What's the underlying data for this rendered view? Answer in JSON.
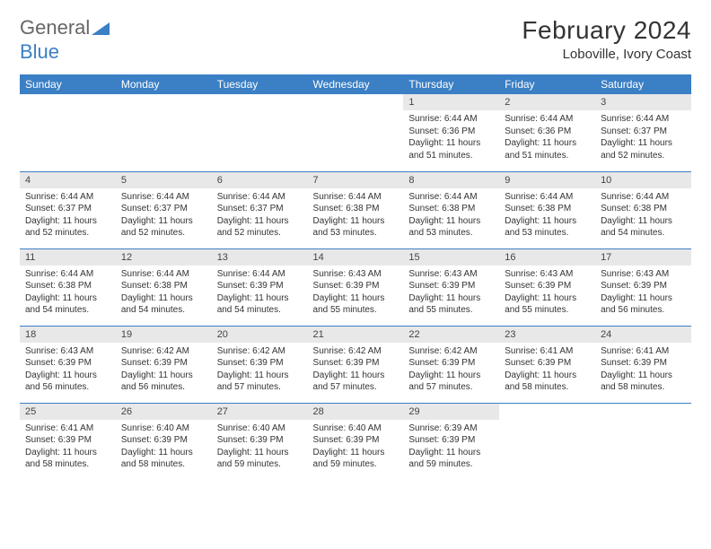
{
  "logo": {
    "text1": "General",
    "text2": "Blue"
  },
  "title": "February 2024",
  "location": "Loboville, Ivory Coast",
  "colors": {
    "header_bg": "#3b7fc4",
    "header_fg": "#ffffff",
    "daynum_bg": "#e8e8e8",
    "cell_border": "#3b7fc4",
    "page_bg": "#ffffff",
    "text": "#333333"
  },
  "calendar": {
    "columns": [
      "Sunday",
      "Monday",
      "Tuesday",
      "Wednesday",
      "Thursday",
      "Friday",
      "Saturday"
    ],
    "weeks": [
      [
        {
          "day": "",
          "sunrise": "",
          "sunset": "",
          "daylight": ""
        },
        {
          "day": "",
          "sunrise": "",
          "sunset": "",
          "daylight": ""
        },
        {
          "day": "",
          "sunrise": "",
          "sunset": "",
          "daylight": ""
        },
        {
          "day": "",
          "sunrise": "",
          "sunset": "",
          "daylight": ""
        },
        {
          "day": "1",
          "sunrise": "6:44 AM",
          "sunset": "6:36 PM",
          "daylight": "11 hours and 51 minutes."
        },
        {
          "day": "2",
          "sunrise": "6:44 AM",
          "sunset": "6:36 PM",
          "daylight": "11 hours and 51 minutes."
        },
        {
          "day": "3",
          "sunrise": "6:44 AM",
          "sunset": "6:37 PM",
          "daylight": "11 hours and 52 minutes."
        }
      ],
      [
        {
          "day": "4",
          "sunrise": "6:44 AM",
          "sunset": "6:37 PM",
          "daylight": "11 hours and 52 minutes."
        },
        {
          "day": "5",
          "sunrise": "6:44 AM",
          "sunset": "6:37 PM",
          "daylight": "11 hours and 52 minutes."
        },
        {
          "day": "6",
          "sunrise": "6:44 AM",
          "sunset": "6:37 PM",
          "daylight": "11 hours and 52 minutes."
        },
        {
          "day": "7",
          "sunrise": "6:44 AM",
          "sunset": "6:38 PM",
          "daylight": "11 hours and 53 minutes."
        },
        {
          "day": "8",
          "sunrise": "6:44 AM",
          "sunset": "6:38 PM",
          "daylight": "11 hours and 53 minutes."
        },
        {
          "day": "9",
          "sunrise": "6:44 AM",
          "sunset": "6:38 PM",
          "daylight": "11 hours and 53 minutes."
        },
        {
          "day": "10",
          "sunrise": "6:44 AM",
          "sunset": "6:38 PM",
          "daylight": "11 hours and 54 minutes."
        }
      ],
      [
        {
          "day": "11",
          "sunrise": "6:44 AM",
          "sunset": "6:38 PM",
          "daylight": "11 hours and 54 minutes."
        },
        {
          "day": "12",
          "sunrise": "6:44 AM",
          "sunset": "6:38 PM",
          "daylight": "11 hours and 54 minutes."
        },
        {
          "day": "13",
          "sunrise": "6:44 AM",
          "sunset": "6:39 PM",
          "daylight": "11 hours and 54 minutes."
        },
        {
          "day": "14",
          "sunrise": "6:43 AM",
          "sunset": "6:39 PM",
          "daylight": "11 hours and 55 minutes."
        },
        {
          "day": "15",
          "sunrise": "6:43 AM",
          "sunset": "6:39 PM",
          "daylight": "11 hours and 55 minutes."
        },
        {
          "day": "16",
          "sunrise": "6:43 AM",
          "sunset": "6:39 PM",
          "daylight": "11 hours and 55 minutes."
        },
        {
          "day": "17",
          "sunrise": "6:43 AM",
          "sunset": "6:39 PM",
          "daylight": "11 hours and 56 minutes."
        }
      ],
      [
        {
          "day": "18",
          "sunrise": "6:43 AM",
          "sunset": "6:39 PM",
          "daylight": "11 hours and 56 minutes."
        },
        {
          "day": "19",
          "sunrise": "6:42 AM",
          "sunset": "6:39 PM",
          "daylight": "11 hours and 56 minutes."
        },
        {
          "day": "20",
          "sunrise": "6:42 AM",
          "sunset": "6:39 PM",
          "daylight": "11 hours and 57 minutes."
        },
        {
          "day": "21",
          "sunrise": "6:42 AM",
          "sunset": "6:39 PM",
          "daylight": "11 hours and 57 minutes."
        },
        {
          "day": "22",
          "sunrise": "6:42 AM",
          "sunset": "6:39 PM",
          "daylight": "11 hours and 57 minutes."
        },
        {
          "day": "23",
          "sunrise": "6:41 AM",
          "sunset": "6:39 PM",
          "daylight": "11 hours and 58 minutes."
        },
        {
          "day": "24",
          "sunrise": "6:41 AM",
          "sunset": "6:39 PM",
          "daylight": "11 hours and 58 minutes."
        }
      ],
      [
        {
          "day": "25",
          "sunrise": "6:41 AM",
          "sunset": "6:39 PM",
          "daylight": "11 hours and 58 minutes."
        },
        {
          "day": "26",
          "sunrise": "6:40 AM",
          "sunset": "6:39 PM",
          "daylight": "11 hours and 58 minutes."
        },
        {
          "day": "27",
          "sunrise": "6:40 AM",
          "sunset": "6:39 PM",
          "daylight": "11 hours and 59 minutes."
        },
        {
          "day": "28",
          "sunrise": "6:40 AM",
          "sunset": "6:39 PM",
          "daylight": "11 hours and 59 minutes."
        },
        {
          "day": "29",
          "sunrise": "6:39 AM",
          "sunset": "6:39 PM",
          "daylight": "11 hours and 59 minutes."
        },
        {
          "day": "",
          "sunrise": "",
          "sunset": "",
          "daylight": ""
        },
        {
          "day": "",
          "sunrise": "",
          "sunset": "",
          "daylight": ""
        }
      ]
    ],
    "labels": {
      "sunrise": "Sunrise:",
      "sunset": "Sunset:",
      "daylight": "Daylight:"
    }
  }
}
